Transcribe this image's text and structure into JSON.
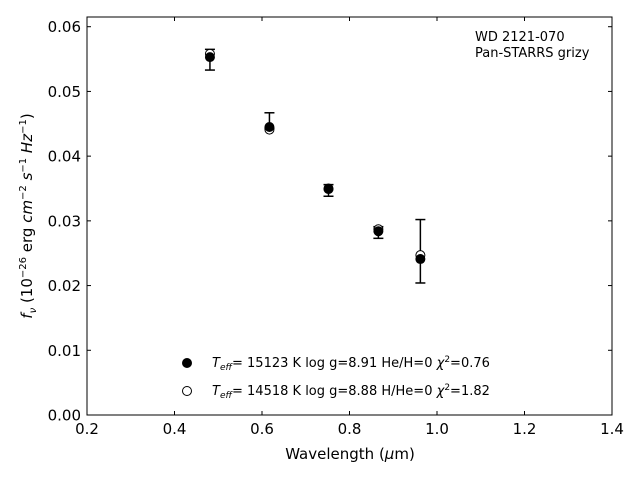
{
  "chart_data": {
    "type": "scatter",
    "xlabel": "Wavelength (μm)",
    "ylabel": "fν (10⁻²⁶ erg cm⁻² s⁻¹ Hz⁻¹)",
    "xlim": [
      0.2,
      1.4
    ],
    "ylim": [
      0.0,
      0.0615
    ],
    "xticks": [
      0.2,
      0.4,
      0.6,
      0.8,
      1.0,
      1.2,
      1.4
    ],
    "yticks": [
      0.0,
      0.01,
      0.02,
      0.03,
      0.04,
      0.05,
      0.06
    ],
    "xtick_labels": [
      "0.2",
      "0.4",
      "0.6",
      "0.8",
      "1.0",
      "1.2",
      "1.4"
    ],
    "ytick_labels": [
      "0.00",
      "0.01",
      "0.02",
      "0.03",
      "0.04",
      "0.05",
      "0.06"
    ],
    "grid": false,
    "annotation": [
      "WD 2121-070",
      "Pan-STARRS grizy"
    ],
    "observed": {
      "x": [
        0.481,
        0.617,
        0.752,
        0.866,
        0.962
      ],
      "y": [
        0.0549,
        0.0455,
        0.0347,
        0.0282,
        0.0253
      ],
      "yerr": [
        0.0016,
        0.0012,
        0.0009,
        0.0009,
        0.0049
      ]
    },
    "series": [
      {
        "name": "Teff= 15123 K  log g=8.91  He/H=0  χ²=0.76",
        "marker": "filled-circle",
        "color": "#000000",
        "x": [
          0.481,
          0.617,
          0.752,
          0.866,
          0.962
        ],
        "y": [
          0.0553,
          0.0445,
          0.035,
          0.0284,
          0.0241
        ]
      },
      {
        "name": "Teff= 14518 K  log g=8.88  H/He=0  χ²=1.82",
        "marker": "open-circle",
        "color": "#000000",
        "x": [
          0.481,
          0.617,
          0.752,
          0.866,
          0.962
        ],
        "y": [
          0.0558,
          0.0441,
          0.0349,
          0.0287,
          0.0247
        ]
      }
    ],
    "legend": [
      {
        "teff": "15123 K",
        "logg": "log g=8.91",
        "comp": "He/H=0",
        "chi": "=0.76"
      },
      {
        "teff": "14518 K",
        "logg": "log g=8.88",
        "comp": "H/He=0",
        "chi": "=1.82"
      }
    ],
    "legend_placement": "bottom-center"
  }
}
